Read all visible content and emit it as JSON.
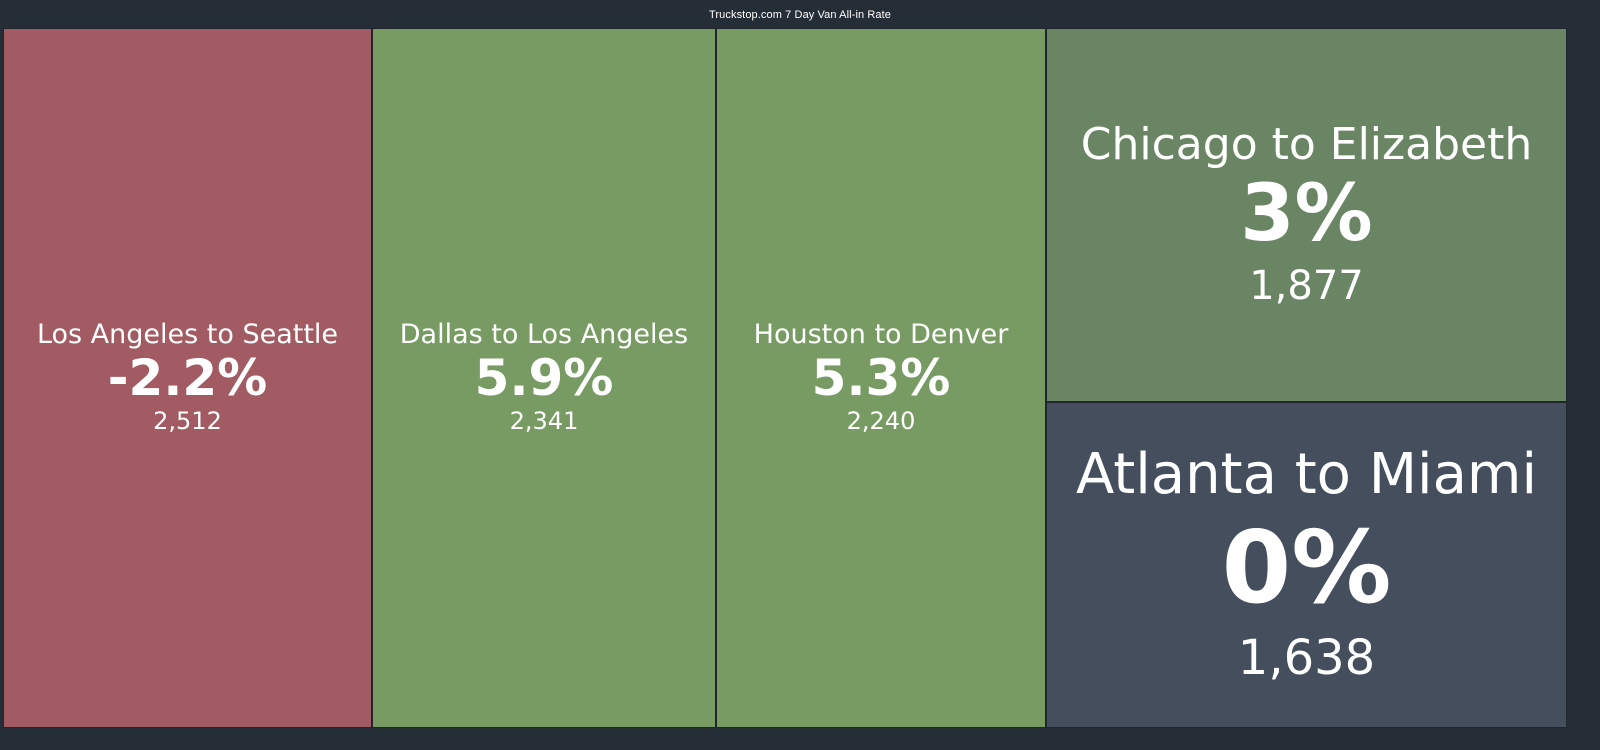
{
  "title": "Truckstop.com 7 Day Van All-in Rate",
  "colors": {
    "negative": "#a35b63",
    "positive": "#789b63",
    "positive_muted": "#6a8563",
    "neutral": "#444e5d"
  },
  "chart_data": {
    "type": "treemap",
    "title": "Truckstop.com 7 Day Van All-in Rate",
    "items": [
      {
        "lane": "Los Angeles to Seattle",
        "change": "-2.2%",
        "change_value": -2.2,
        "rate": "2,512",
        "rate_value": 2512
      },
      {
        "lane": "Dallas to Los Angeles",
        "change": "5.9%",
        "change_value": 5.9,
        "rate": "2,341",
        "rate_value": 2341
      },
      {
        "lane": "Houston to Denver",
        "change": "5.3%",
        "change_value": 5.3,
        "rate": "2,240",
        "rate_value": 2240
      },
      {
        "lane": "Chicago to Elizabeth",
        "change": "3%",
        "change_value": 3,
        "rate": "1,877",
        "rate_value": 1877
      },
      {
        "lane": "Atlanta to Miami",
        "change": "0%",
        "change_value": 0,
        "rate": "1,638",
        "rate_value": 1638
      }
    ]
  }
}
